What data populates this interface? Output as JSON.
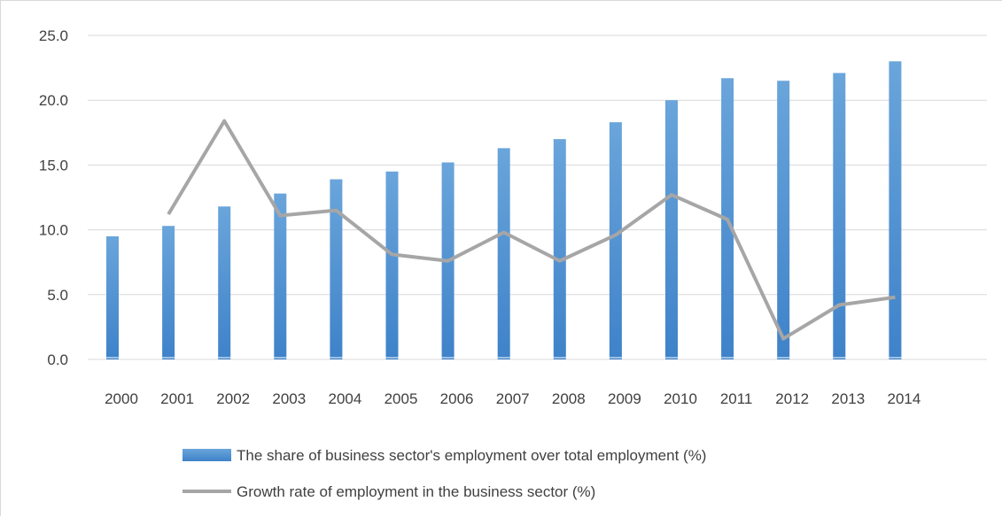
{
  "chart_data": {
    "type": "bar",
    "categories": [
      "2000",
      "2001",
      "2002",
      "2003",
      "2004",
      "2005",
      "2006",
      "2007",
      "2008",
      "2009",
      "2010",
      "2011",
      "2012",
      "2013",
      "2014"
    ],
    "ylim": [
      0,
      25
    ],
    "y_ticks": [
      "0.0",
      "5.0",
      "10.0",
      "15.0",
      "20.0",
      "25.0"
    ],
    "grid": true,
    "legend_position": "bottom",
    "series": [
      {
        "name": "The share of business sector's employment over total employment (%)",
        "type": "bar",
        "color": "#5b9bd5",
        "values": [
          9.5,
          10.3,
          11.8,
          12.8,
          13.9,
          14.5,
          15.2,
          16.3,
          17.0,
          18.3,
          20.0,
          21.7,
          21.5,
          22.1,
          23.0
        ]
      },
      {
        "name": "Growth rate of employment in the business sector (%)",
        "type": "line",
        "color": "#a6a6a6",
        "values": [
          null,
          11.2,
          18.4,
          11.1,
          11.5,
          8.1,
          7.6,
          9.8,
          7.6,
          9.6,
          12.7,
          10.8,
          1.6,
          4.2,
          4.8
        ]
      }
    ]
  }
}
